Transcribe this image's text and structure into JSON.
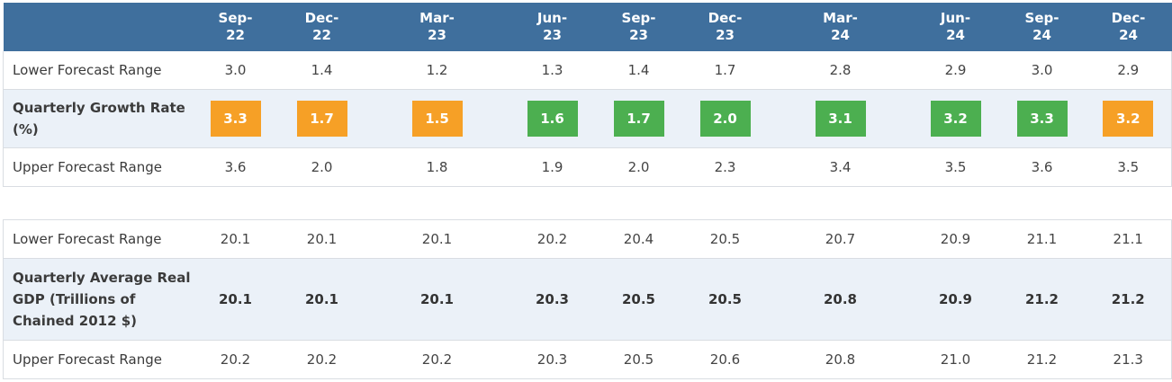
{
  "colors": {
    "header_bg": "#3f6f9d",
    "orange": "#f6a026",
    "green": "#4caf50",
    "shade_bg": "#ebf1f8"
  },
  "columns": [
    {
      "month": "Sep-",
      "year": "22"
    },
    {
      "month": "Dec-",
      "year": "22"
    },
    {
      "month": "Mar-",
      "year": "23"
    },
    {
      "month": "Jun-",
      "year": "23"
    },
    {
      "month": "Sep-",
      "year": "23"
    },
    {
      "month": "Dec-",
      "year": "23"
    },
    {
      "month": "Mar-",
      "year": "24"
    },
    {
      "month": "Jun-",
      "year": "24"
    },
    {
      "month": "Sep-",
      "year": "24"
    },
    {
      "month": "Dec-",
      "year": "24"
    }
  ],
  "growth_table": {
    "lower": {
      "label": "Lower Forecast Range",
      "values": [
        "3.0",
        "1.4",
        "1.2",
        "1.3",
        "1.4",
        "1.7",
        "2.8",
        "2.9",
        "3.0",
        "2.9"
      ]
    },
    "main": {
      "label": "Quarterly Growth Rate (%)",
      "values": [
        "3.3",
        "1.7",
        "1.5",
        "1.6",
        "1.7",
        "2.0",
        "3.1",
        "3.2",
        "3.3",
        "3.2"
      ],
      "status": [
        "orange",
        "orange",
        "orange",
        "green",
        "green",
        "green",
        "green",
        "green",
        "green",
        "orange"
      ]
    },
    "upper": {
      "label": "Upper Forecast Range",
      "values": [
        "3.6",
        "2.0",
        "1.8",
        "1.9",
        "2.0",
        "2.3",
        "3.4",
        "3.5",
        "3.6",
        "3.5"
      ]
    }
  },
  "gdp_table": {
    "lower": {
      "label": "Lower Forecast Range",
      "values": [
        "20.1",
        "20.1",
        "20.1",
        "20.2",
        "20.4",
        "20.5",
        "20.7",
        "20.9",
        "21.1",
        "21.1"
      ]
    },
    "main": {
      "label": "Quarterly Average Real GDP (Trillions of Chained 2012 $)",
      "values": [
        "20.1",
        "20.1",
        "20.1",
        "20.3",
        "20.5",
        "20.5",
        "20.8",
        "20.9",
        "21.2",
        "21.2"
      ]
    },
    "upper": {
      "label": "Upper Forecast Range",
      "values": [
        "20.2",
        "20.2",
        "20.2",
        "20.3",
        "20.5",
        "20.6",
        "20.8",
        "21.0",
        "21.2",
        "21.3"
      ]
    }
  }
}
